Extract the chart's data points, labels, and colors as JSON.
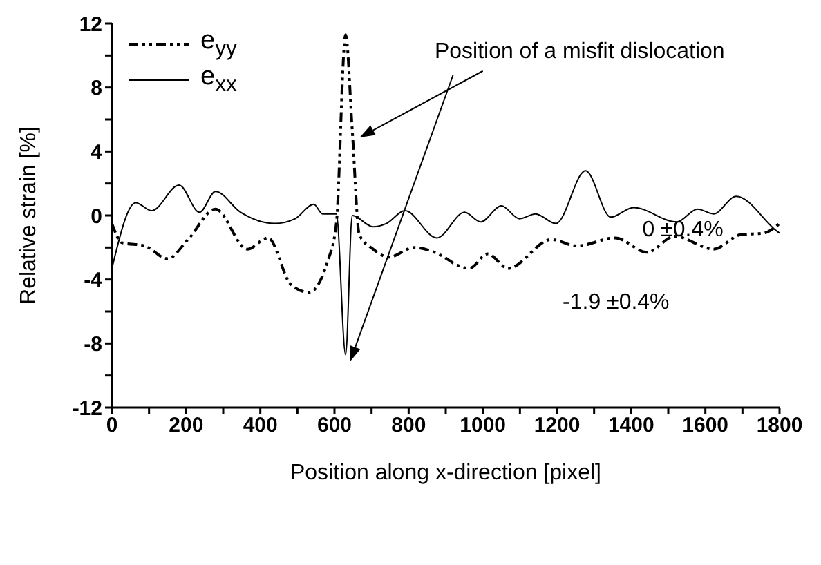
{
  "chart_data": {
    "type": "line",
    "xlabel": "Position along x-direction [pixel]",
    "ylabel": "Relative strain [%]",
    "xlim": [
      0,
      1800
    ],
    "xticks": [
      0,
      {
        "value": 100,
        "label": null
      },
      200,
      {
        "value": 300,
        "label": null
      },
      400,
      {
        "value": 500,
        "label": null
      },
      600,
      {
        "value": 700,
        "label": null
      },
      800,
      {
        "value": 900,
        "label": null
      },
      1000,
      {
        "value": 1100,
        "label": null
      },
      1200,
      {
        "value": 1300,
        "label": null
      },
      1400,
      {
        "value": 1500,
        "label": null
      },
      1600,
      {
        "value": 1700,
        "label": null
      },
      1800
    ],
    "ylim": [
      -12,
      12
    ],
    "yticks": [
      -12,
      {
        "value": -10,
        "label": null
      },
      -8,
      {
        "value": -6,
        "label": null
      },
      -4,
      {
        "value": -2,
        "label": null
      },
      0,
      {
        "value": 2,
        "label": null
      },
      4,
      {
        "value": 6,
        "label": null
      },
      8,
      {
        "value": 10,
        "label": null
      },
      12
    ],
    "legend": "top left",
    "marker": "none",
    "series": [
      {
        "name": "e$_{yy}$",
        "color": "#000000",
        "line_style": "dashed",
        "x": [
          0,
          27,
          89,
          150,
          205,
          279,
          365,
          421,
          482,
          531,
          581,
          605,
          630,
          648,
          667,
          704,
          747,
          814,
          888,
          931,
          964,
          1013,
          1068,
          1185,
          1253,
          1357,
          1443,
          1517,
          1622,
          1695,
          1757,
          1800
        ],
        "values": [
          -0.5,
          -1.7,
          -1.9,
          -2.7,
          -1.5,
          0.4,
          -2.1,
          -1.4,
          -4.3,
          -4.8,
          -2.9,
          -0.5,
          11.3,
          5.3,
          -1.2,
          -2.1,
          -2.6,
          -2.0,
          -2.5,
          -3.1,
          -3.3,
          -2.4,
          -3.3,
          -1.5,
          -1.9,
          -1.4,
          -2.3,
          -1.3,
          -2.1,
          -1.2,
          -1.1,
          -0.5
        ]
      },
      {
        "name": "e$_{xx}$",
        "color": "#000000",
        "line_style": "solid",
        "x": [
          0,
          64,
          107,
          181,
          236,
          279,
          347,
          439,
          494,
          544,
          568,
          605,
          630,
          648,
          704,
          740,
          790,
          876,
          951,
          994,
          1050,
          1099,
          1142,
          1197,
          1277,
          1345,
          1406,
          1523,
          1579,
          1622,
          1683,
          1794,
          1800
        ],
        "values": [
          -3.3,
          0.8,
          0.3,
          1.9,
          0.2,
          1.5,
          0.2,
          -0.5,
          -0.2,
          0.7,
          0.1,
          0.1,
          -8.7,
          0,
          -0.7,
          -0.5,
          0.3,
          -1.4,
          0.2,
          -0.4,
          0.6,
          -0.2,
          0.1,
          -0.5,
          2.8,
          -0.1,
          0.5,
          -0.4,
          0.4,
          0.1,
          1.2,
          -1.0,
          -1.1
        ]
      }
    ],
    "annotations": [
      "Position of a misfit dislocation",
      "0 ±0.4%",
      "-1.9 ±0.4%"
    ]
  }
}
